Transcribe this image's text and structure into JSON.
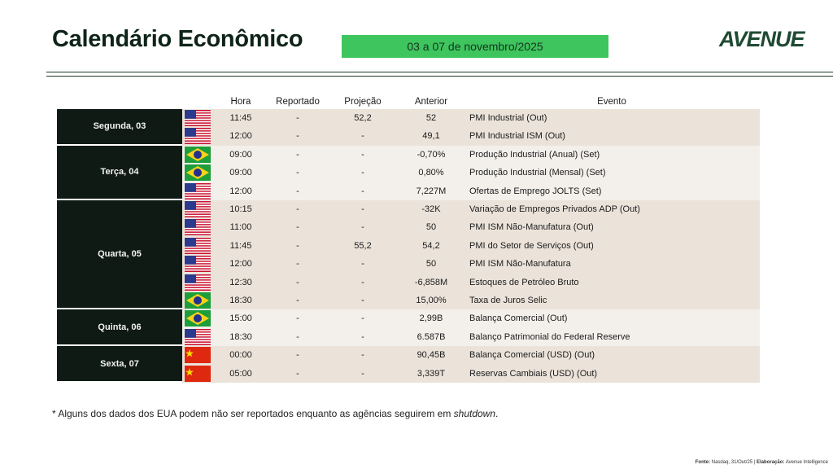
{
  "header": {
    "title": "Calendário Econômico",
    "period": "03 a 07 de novembro/2025",
    "logo": "AVENUE"
  },
  "table": {
    "columns": [
      "Hora",
      "Reportado",
      "Projeção",
      "Anterior",
      "Evento"
    ],
    "days": [
      {
        "label": "Segunda, 03",
        "events": [
          {
            "flag": "us",
            "cells": [
              "11:45",
              "-",
              "52,2",
              "52",
              "PMI Industrial (Out)"
            ]
          },
          {
            "flag": "us",
            "cells": [
              "12:00",
              "-",
              "-",
              "49,1",
              "PMI Industrial ISM (Out)"
            ]
          }
        ]
      },
      {
        "label": "Terça, 04",
        "events": [
          {
            "flag": "br",
            "cells": [
              "09:00",
              "-",
              "-",
              "-0,70%",
              "Produção Industrial (Anual) (Set)"
            ]
          },
          {
            "flag": "br",
            "cells": [
              "09:00",
              "-",
              "-",
              "0,80%",
              "Produção Industrial (Mensal) (Set)"
            ]
          },
          {
            "flag": "us",
            "cells": [
              "12:00",
              "-",
              "-",
              "7,227M",
              "Ofertas de Emprego JOLTS (Set)"
            ]
          }
        ]
      },
      {
        "label": "Quarta, 05",
        "events": [
          {
            "flag": "us",
            "cells": [
              "10:15",
              "-",
              "-",
              "-32K",
              "Variação de Empregos Privados ADP (Out)"
            ]
          },
          {
            "flag": "us",
            "cells": [
              "11:00",
              "-",
              "-",
              "50",
              "PMI ISM Não-Manufatura (Out)"
            ]
          },
          {
            "flag": "us",
            "cells": [
              "11:45",
              "-",
              "55,2",
              "54,2",
              "PMI do Setor de Serviços (Out)"
            ]
          },
          {
            "flag": "us",
            "cells": [
              "12:00",
              "-",
              "-",
              "50",
              "PMI ISM Não-Manufatura"
            ]
          },
          {
            "flag": "us",
            "cells": [
              "12:30",
              "-",
              "-",
              "-6,858M",
              "Estoques de Petróleo Bruto"
            ]
          },
          {
            "flag": "br",
            "cells": [
              "18:30",
              "-",
              "-",
              "15,00%",
              "Taxa de Juros Selic"
            ]
          }
        ]
      },
      {
        "label": "Quinta, 06",
        "events": [
          {
            "flag": "br",
            "cells": [
              "15:00",
              "-",
              "-",
              "2,99B",
              "Balança Comercial (Out)"
            ]
          },
          {
            "flag": "us",
            "cells": [
              "18:30",
              "-",
              "-",
              "6.587B",
              "Balanço Patrimonial do Federal Reserve"
            ]
          }
        ]
      },
      {
        "label": "Sexta, 07",
        "events": [
          {
            "flag": "cn",
            "cells": [
              "00:00",
              "-",
              "-",
              "90,45B",
              "Balança Comercial (USD) (Out)"
            ]
          },
          {
            "flag": "cn",
            "cells": [
              "05:00",
              "-",
              "-",
              "3,339T",
              "Reservas Cambiais (USD) (Out)"
            ]
          }
        ]
      }
    ]
  },
  "footnote": {
    "text": "* Alguns dos dados dos EUA podem não ser reportados enquanto as agências seguirem em",
    "emphasis": "shutdown",
    "end": "."
  },
  "source": {
    "label": "Fonte:",
    "text": "Nasdaq, 31/Out/25 |",
    "author_label": "Elaboração:",
    "author": "Avenue Intelligence"
  }
}
